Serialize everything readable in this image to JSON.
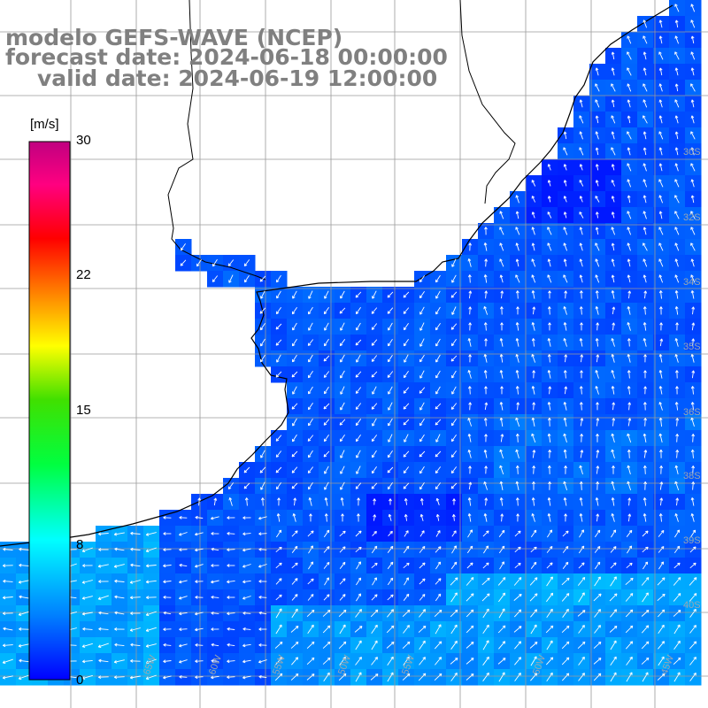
{
  "title": {
    "line1": "modelo GEFS-WAVE (NCEP)",
    "line2": "forecast date: 2024-06-18 00:00:00",
    "line3": "valid date: 2024-06-19 12:00:00"
  },
  "colorbar": {
    "unit": "[m/s]",
    "ticks": [
      "30",
      "22",
      "15",
      "8",
      "0"
    ],
    "stops": [
      "#0000ff",
      "#00a0ff",
      "#00ffff",
      "#00ff80",
      "#00c000",
      "#ffff00",
      "#ff8000",
      "#ff0000",
      "#ff0080",
      "#c00080"
    ]
  },
  "lat_labels": [
    "30S",
    "32S",
    "34S",
    "35S",
    "36S",
    "38S",
    "39S",
    "40S"
  ],
  "lon_labels": [
    "65W",
    "60W",
    "55W",
    "50W",
    "55W",
    "50W",
    "45W"
  ],
  "colors": {
    "land": "#ffffff",
    "grid": "#9a9a9a",
    "coast": "#000000",
    "arrow": "#ffffff",
    "deep": "#0018ff",
    "mid": "#0060ff",
    "light": "#00c8ff"
  }
}
